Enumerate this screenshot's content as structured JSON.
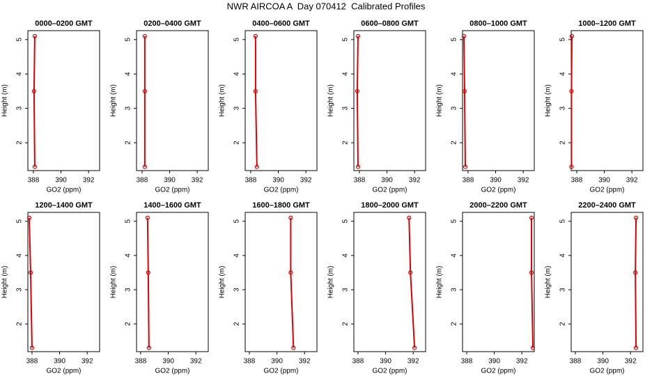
{
  "title": "NWR AIRCOA A  Day 070412  Calibrated Profiles",
  "chart_data": [
    {
      "type": "line",
      "title": "0000–0200 GMT",
      "x_label": "GO2 (ppm)",
      "y_label": "Height (m)",
      "color": "#dd0000",
      "x": [
        388.1,
        388.05,
        388.1
      ],
      "y": [
        5.1,
        3.5,
        1.3
      ],
      "xlim": [
        387.6,
        392.8
      ],
      "ylim": [
        1.19,
        5.26
      ],
      "xticks": [
        388,
        390,
        392
      ],
      "yticks": [
        2,
        3,
        4,
        5
      ]
    },
    {
      "type": "line",
      "title": "0200–0400 GMT",
      "x_label": "GO2 (ppm)",
      "y_label": "Height (m)",
      "color": "#dd0000",
      "x": [
        388.2,
        388.2,
        388.2
      ],
      "y": [
        5.1,
        3.5,
        1.3
      ],
      "xlim": [
        387.6,
        392.8
      ],
      "ylim": [
        1.19,
        5.26
      ],
      "xticks": [
        388,
        390,
        392
      ],
      "yticks": [
        2,
        3,
        4,
        5
      ]
    },
    {
      "type": "line",
      "title": "0400–0600 GMT",
      "x_label": "GO2 (ppm)",
      "y_label": "Height (m)",
      "color": "#dd0000",
      "x": [
        388.35,
        388.35,
        388.45
      ],
      "y": [
        5.1,
        3.5,
        1.3
      ],
      "xlim": [
        387.6,
        392.8
      ],
      "ylim": [
        1.19,
        5.26
      ],
      "xticks": [
        388,
        390,
        392
      ],
      "yticks": [
        2,
        3,
        4,
        5
      ]
    },
    {
      "type": "line",
      "title": "0600–0800 GMT",
      "x_label": "GO2 (ppm)",
      "y_label": "Height (m)",
      "color": "#dd0000",
      "x": [
        387.9,
        387.85,
        387.9
      ],
      "y": [
        5.1,
        3.5,
        1.3
      ],
      "xlim": [
        387.6,
        392.8
      ],
      "ylim": [
        1.19,
        5.26
      ],
      "xticks": [
        388,
        390,
        392
      ],
      "yticks": [
        2,
        3,
        4,
        5
      ]
    },
    {
      "type": "line",
      "title": "0800–1000 GMT",
      "x_label": "GO2 (ppm)",
      "y_label": "Height (m)",
      "color": "#dd0000",
      "x": [
        387.7,
        387.75,
        387.8
      ],
      "y": [
        5.1,
        3.5,
        1.3
      ],
      "xlim": [
        387.6,
        392.8
      ],
      "ylim": [
        1.19,
        5.26
      ],
      "xticks": [
        388,
        390,
        392
      ],
      "yticks": [
        2,
        3,
        4,
        5
      ]
    },
    {
      "type": "line",
      "title": "1000–1200 GMT",
      "x_label": "GO2 (ppm)",
      "y_label": "Height (m)",
      "color": "#dd0000",
      "x": [
        387.65,
        387.62,
        387.62
      ],
      "y": [
        5.1,
        3.5,
        1.3
      ],
      "xlim": [
        387.6,
        392.8
      ],
      "ylim": [
        1.19,
        5.26
      ],
      "xticks": [
        388,
        390,
        392
      ],
      "yticks": [
        2,
        3,
        4,
        5
      ]
    },
    {
      "type": "line",
      "title": "1200–1400 GMT",
      "x_label": "GO2 (ppm)",
      "y_label": "Height (m)",
      "color": "#dd0000",
      "x": [
        387.8,
        387.9,
        388.0
      ],
      "y": [
        5.1,
        3.5,
        1.3
      ],
      "xlim": [
        387.7,
        392.9
      ],
      "ylim": [
        1.19,
        5.26
      ],
      "xticks": [
        388,
        390,
        392
      ],
      "yticks": [
        2,
        3,
        4,
        5
      ]
    },
    {
      "type": "line",
      "title": "1400–1600 GMT",
      "x_label": "GO2 (ppm)",
      "y_label": "Height (m)",
      "color": "#dd0000",
      "x": [
        388.5,
        388.55,
        388.6
      ],
      "y": [
        5.1,
        3.5,
        1.3
      ],
      "xlim": [
        387.7,
        392.9
      ],
      "ylim": [
        1.19,
        5.26
      ],
      "xticks": [
        388,
        390,
        392
      ],
      "yticks": [
        2,
        3,
        4,
        5
      ]
    },
    {
      "type": "line",
      "title": "1600–1800 GMT",
      "x_label": "GO2 (ppm)",
      "y_label": "Height (m)",
      "color": "#dd0000",
      "x": [
        391.0,
        391.0,
        391.2
      ],
      "y": [
        5.1,
        3.5,
        1.3
      ],
      "xlim": [
        387.7,
        392.9
      ],
      "ylim": [
        1.19,
        5.26
      ],
      "xticks": [
        388,
        390,
        392
      ],
      "yticks": [
        2,
        3,
        4,
        5
      ]
    },
    {
      "type": "line",
      "title": "1800–2000 GMT",
      "x_label": "GO2 (ppm)",
      "y_label": "Height (m)",
      "color": "#dd0000",
      "x": [
        391.7,
        391.8,
        392.1
      ],
      "y": [
        5.1,
        3.5,
        1.3
      ],
      "xlim": [
        387.7,
        392.9
      ],
      "ylim": [
        1.19,
        5.26
      ],
      "xticks": [
        388,
        390,
        392
      ],
      "yticks": [
        2,
        3,
        4,
        5
      ]
    },
    {
      "type": "line",
      "title": "2000–2200 GMT",
      "x_label": "GO2 (ppm)",
      "y_label": "Height (m)",
      "color": "#dd0000",
      "x": [
        392.7,
        392.7,
        392.8
      ],
      "y": [
        5.1,
        3.5,
        1.3
      ],
      "xlim": [
        387.7,
        392.9
      ],
      "ylim": [
        1.19,
        5.26
      ],
      "xticks": [
        388,
        390,
        392
      ],
      "yticks": [
        2,
        3,
        4,
        5
      ]
    },
    {
      "type": "line",
      "title": "2200–2400 GMT",
      "x_label": "GO2 (ppm)",
      "y_label": "Height (m)",
      "color": "#dd0000",
      "x": [
        392.4,
        392.35,
        392.4
      ],
      "y": [
        5.1,
        3.5,
        1.3
      ],
      "xlim": [
        387.7,
        392.9
      ],
      "ylim": [
        1.19,
        5.26
      ],
      "xticks": [
        388,
        390,
        392
      ],
      "yticks": [
        2,
        3,
        4,
        5
      ]
    }
  ]
}
